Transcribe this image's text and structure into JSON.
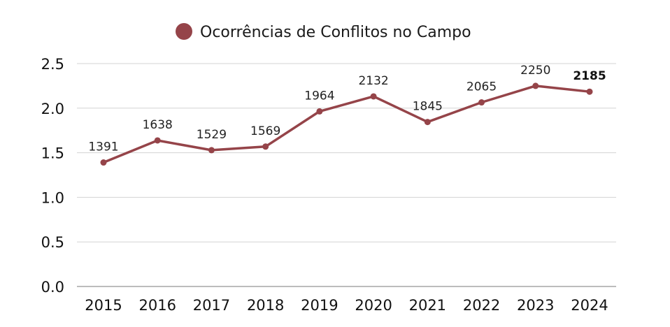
{
  "chart_data": {
    "type": "line",
    "title": "",
    "xlabel": "",
    "ylabel": "",
    "legend": {
      "position": "top-center",
      "entries": [
        "Ocorrências de Conflitos no Campo"
      ]
    },
    "categories": [
      "2015",
      "2016",
      "2017",
      "2018",
      "2019",
      "2020",
      "2021",
      "2022",
      "2023",
      "2024"
    ],
    "series": [
      {
        "name": "Ocorrências de Conflitos no Campo",
        "color": "#954449",
        "values": [
          1391,
          1638,
          1529,
          1569,
          1964,
          2132,
          1845,
          2065,
          2250,
          2185
        ],
        "data_labels": [
          "1391",
          "1638",
          "1529",
          "1569",
          "1964",
          "2132",
          "1845",
          "2065",
          "2250",
          "2185"
        ],
        "bold_label_index": 9
      }
    ],
    "axis_scale": 1000,
    "ylim": [
      0,
      2.5
    ],
    "yticks": [
      "0.0",
      "0.5",
      "1.0",
      "1.5",
      "2.0",
      "2.5"
    ],
    "grid": true,
    "grid_color": "#d3d3d3",
    "axis_color": "#a6a6a6"
  }
}
